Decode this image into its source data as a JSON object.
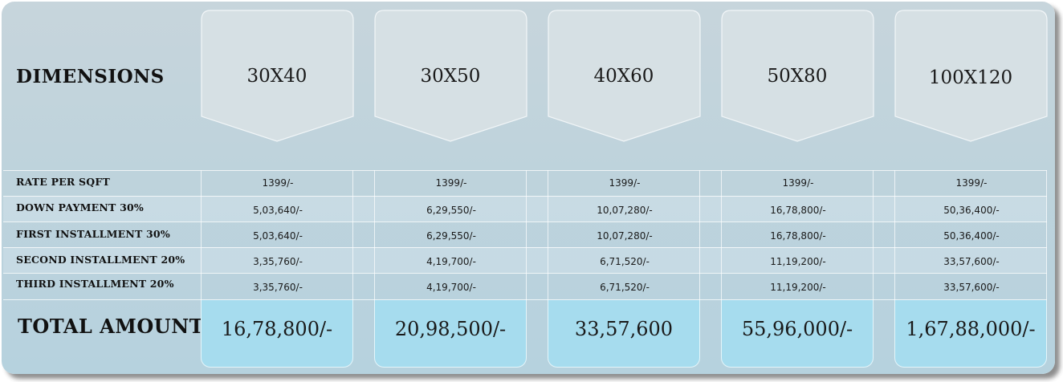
{
  "header_label": "DIMENSIONS",
  "columns": [
    "30X40",
    "30X50",
    "40X60",
    "50X80",
    "100X120"
  ],
  "rows": [
    {
      "label": "RATE PER SQFT",
      "values": [
        "1399/-",
        "1399/-",
        "1399/-",
        "1399/-",
        "1399/-"
      ]
    },
    {
      "label": "DOWN PAYMENT 30%",
      "values": [
        "5,03,640/-",
        "6,29,550/-",
        "10,07,280/-",
        "16,78,800/-",
        "50,36,400/-"
      ]
    },
    {
      "label": "FIRST INSTALLMENT 30%",
      "values": [
        "5,03,640/-",
        "6,29,550/-",
        "10,07,280/-",
        "16,78,800/-",
        "50,36,400/-"
      ]
    },
    {
      "label": "SECOND INSTALLMENT 20%",
      "values": [
        "3,35,760/-",
        "4,19,700/-",
        "6,71,520/-",
        "11,19,200/-",
        "33,57,600/-"
      ]
    },
    {
      "label": "THIRD INSTALLMENT 20%",
      "values": [
        "3,35,760/-",
        "4,19,700/-",
        "6,71,520/-",
        "11,19,200/-",
        "33,57,600/-"
      ]
    }
  ],
  "total": {
    "label": "TOTAL AMOUNT",
    "values": [
      "16,78,800/-",
      "20,98,500/-",
      "33,57,600",
      "55,96,000/-",
      "1,67,88,000/-"
    ]
  },
  "colors": {
    "panel_bg": "#bfd3dc",
    "header_card": "#d6e0e4",
    "total_bg": "#a6dcee"
  }
}
